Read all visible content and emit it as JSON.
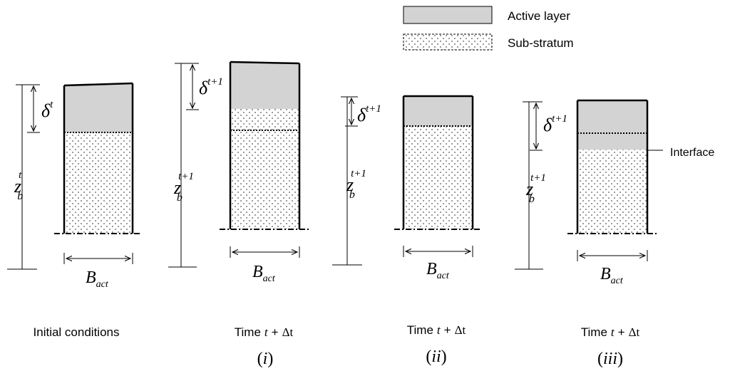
{
  "legend": {
    "active_label": "Active layer",
    "substratum_label": "Sub-stratum",
    "active_color": "#d3d3d3",
    "dot_color": "#555555"
  },
  "interface_label": "Interface",
  "panels": [
    {
      "caption_plain": "Initial conditions",
      "caption_time": "",
      "caption_t": "",
      "caption_plus": "",
      "caption_delta": "",
      "sub_label": "",
      "delta_sym": "δ",
      "delta_sup": "t",
      "z_sym": "z",
      "z_sup": "t",
      "z_sub": "b",
      "b_sym": "B",
      "b_sub": "act"
    },
    {
      "caption_plain": "",
      "caption_time": "Time",
      "caption_t": "t",
      "caption_plus": "+",
      "caption_delta": "Δt",
      "sub_label": "i",
      "delta_sym": "δ",
      "delta_sup": "t+1",
      "z_sym": "z",
      "z_sup": "t+1",
      "z_sub": "b",
      "b_sym": "B",
      "b_sub": "act"
    },
    {
      "caption_plain": "",
      "caption_time": "Time",
      "caption_t": "t",
      "caption_plus": "+",
      "caption_delta": "Δt",
      "sub_label": "ii",
      "delta_sym": "δ",
      "delta_sup": "t+1",
      "z_sym": "z",
      "z_sup": "t+1",
      "z_sub": "b",
      "b_sym": "B",
      "b_sub": "act"
    },
    {
      "caption_plain": "",
      "caption_time": "Time",
      "caption_t": "t",
      "caption_plus": "+",
      "caption_delta": "Δt",
      "sub_label": "iii",
      "delta_sym": "δ",
      "delta_sup": "t+1",
      "z_sym": "z",
      "z_sup": "t+1",
      "z_sub": "b",
      "b_sym": "B",
      "b_sub": "act"
    }
  ]
}
